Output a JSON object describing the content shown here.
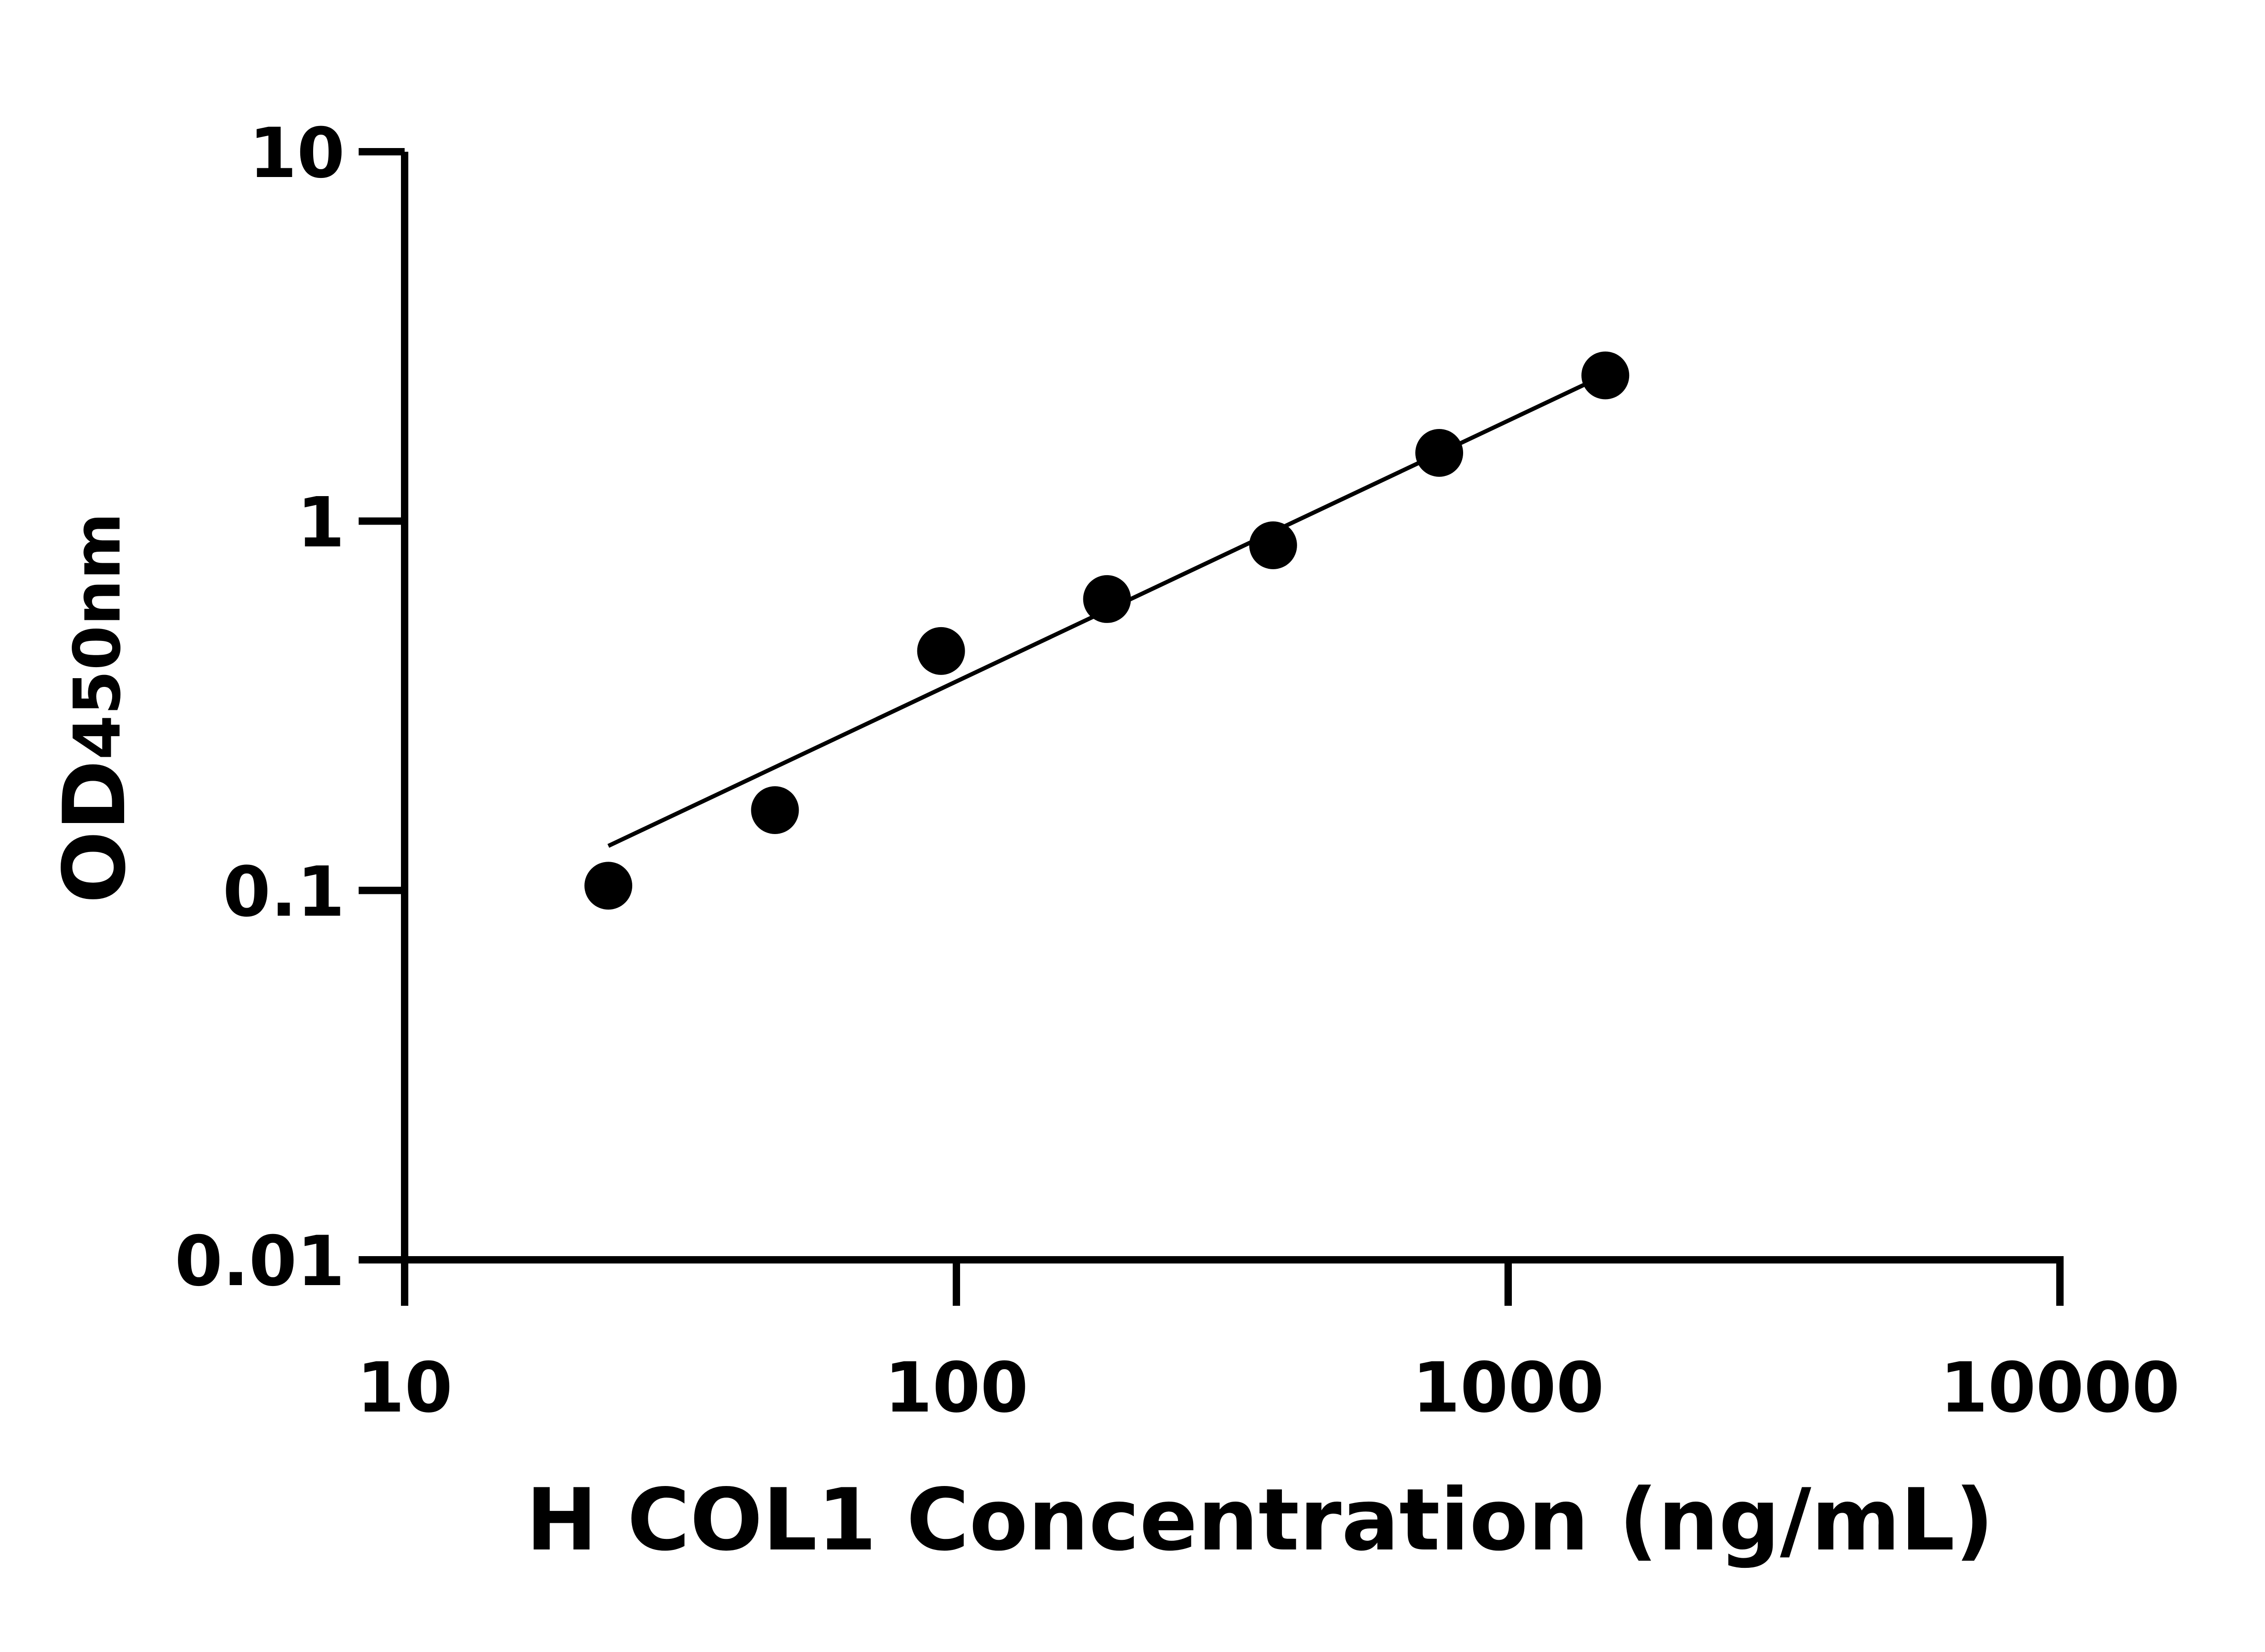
{
  "chart_data": {
    "type": "scatter",
    "title": "",
    "xlabel": "H COL1 Concentration (ng/mL)",
    "ylabel": {
      "main": "OD",
      "sub": "450nm"
    },
    "x_scale": "log",
    "y_scale": "log",
    "xlim": [
      10,
      10000
    ],
    "ylim": [
      0.01,
      10
    ],
    "x_ticks": [
      10,
      100,
      1000,
      10000
    ],
    "x_tick_labels": [
      "10",
      "100",
      "1000",
      "10000"
    ],
    "y_ticks": [
      0.01,
      0.1,
      1,
      10
    ],
    "y_tick_labels": [
      "0.01",
      "0.1",
      "1",
      "10"
    ],
    "grid": false,
    "legend": "none",
    "series": [
      {
        "points": [
          {
            "x": 23.4,
            "y": 0.103
          },
          {
            "x": 46.9,
            "y": 0.165
          },
          {
            "x": 93.8,
            "y": 0.445
          },
          {
            "x": 187.5,
            "y": 0.615
          },
          {
            "x": 375,
            "y": 0.86
          },
          {
            "x": 750,
            "y": 1.53
          },
          {
            "x": 1500,
            "y": 2.48
          }
        ],
        "color": "#000000"
      }
    ],
    "fit_line": {
      "x_range": [
        23.4,
        1500
      ],
      "y_range": [
        0.132,
        2.49
      ],
      "color": "#000000"
    }
  }
}
